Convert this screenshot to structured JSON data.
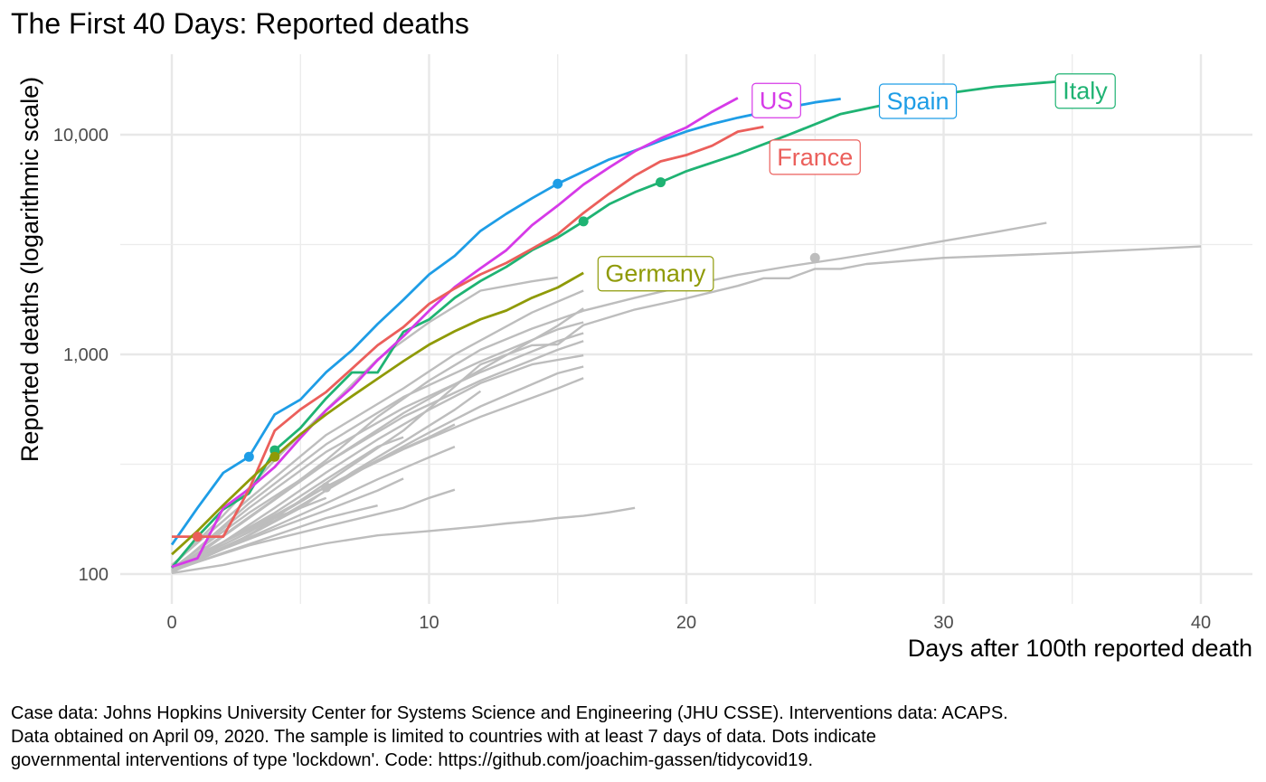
{
  "title": "The First 40 Days: Reported deaths",
  "caption": "Case data: Johns Hopkins University Center for Systems Science and Engineering (JHU CSSE). Interventions data: ACAPS.\nData obtained on April 09, 2020. The sample is limited to countries with at least 7 days of data. Dots indicate\ngovernmental interventions of type 'lockdown'. Code: https://github.com/joachim-gassen/tidycovid19.",
  "chart_data": {
    "type": "line",
    "title": "The First 40 Days: Reported deaths",
    "xlabel": "Days after 100th reported death",
    "ylabel": "Reported deaths (logarithmic scale)",
    "y_scale": "log10",
    "xlim": [
      -2,
      42
    ],
    "ylim": [
      80,
      19000
    ],
    "x_ticks": [
      0,
      10,
      20,
      30,
      40
    ],
    "x_tick_labels": [
      "0",
      "10",
      "20",
      "30",
      "40"
    ],
    "y_ticks": [
      100,
      1000,
      10000
    ],
    "y_tick_labels": [
      "100",
      "1,000",
      "10,000"
    ],
    "grid": true,
    "series": [
      {
        "name": "Italy",
        "color": "#1fb373",
        "label_at": [
          35.5,
          15800
        ],
        "x": [
          0,
          1,
          2,
          3,
          4,
          5,
          6,
          7,
          8,
          9,
          10,
          11,
          12,
          13,
          14,
          15,
          16,
          17,
          18,
          19,
          20,
          22,
          24,
          26,
          28,
          30,
          32,
          35
        ],
        "y": [
          107,
          148,
          197,
          233,
          366,
          463,
          631,
          827,
          827,
          1266,
          1441,
          1809,
          2158,
          2503,
          2978,
          3405,
          4032,
          4825,
          5476,
          6077,
          6820,
          8165,
          10023,
          12428,
          13915,
          15362,
          16523,
          17669
        ],
        "lockdown": [
          [
            4,
            366
          ],
          [
            16,
            4032
          ],
          [
            19,
            6077
          ]
        ]
      },
      {
        "name": "Spain",
        "color": "#1e9de6",
        "label_at": [
          29,
          14200
        ],
        "x": [
          0,
          1,
          2,
          3,
          4,
          5,
          6,
          7,
          8,
          9,
          10,
          11,
          12,
          13,
          14,
          15,
          16,
          17,
          18,
          19,
          20,
          21,
          22,
          23,
          24,
          25,
          26
        ],
        "y": [
          136,
          200,
          289,
          342,
          533,
          623,
          830,
          1043,
          1375,
          1772,
          2311,
          2808,
          3647,
          4365,
          5138,
          5982,
          6803,
          7716,
          8464,
          9387,
          10348,
          11198,
          11947,
          12641,
          13341,
          14045,
          14555
        ],
        "lockdown": [
          [
            3,
            342
          ],
          [
            15,
            5982
          ]
        ]
      },
      {
        "name": "US",
        "color": "#d63ae8",
        "label_at": [
          23.5,
          14300
        ],
        "x": [
          0,
          1,
          2,
          3,
          4,
          5,
          6,
          7,
          8,
          9,
          10,
          11,
          12,
          13,
          14,
          15,
          16,
          17,
          18,
          19,
          20,
          21,
          22
        ],
        "y": [
          108,
          118,
          200,
          244,
          307,
          417,
          557,
          706,
          942,
          1209,
          1581,
          2026,
          2467,
          2978,
          3873,
          4757,
          5926,
          7087,
          8407,
          9619,
          10783,
          12722,
          14695
        ],
        "lockdown": []
      },
      {
        "name": "France",
        "color": "#eb5f5b",
        "label_at": [
          25,
          7900
        ],
        "x": [
          0,
          1,
          2,
          3,
          4,
          5,
          6,
          7,
          8,
          9,
          10,
          11,
          12,
          13,
          14,
          15,
          16,
          17,
          18,
          19,
          20,
          21,
          22,
          23
        ],
        "y": [
          148,
          148,
          148,
          243,
          450,
          562,
          674,
          860,
          1100,
          1331,
          1696,
          1995,
          2314,
          2606,
          3024,
          3523,
          4403,
          5387,
          6507,
          7560,
          8078,
          8911,
          10328,
          10869
        ],
        "lockdown": [
          [
            1,
            148
          ]
        ]
      },
      {
        "name": "Germany",
        "color": "#8f9a07",
        "label_at": [
          18.8,
          2330
        ],
        "x": [
          0,
          1,
          2,
          3,
          4,
          5,
          6,
          7,
          8,
          9,
          10,
          11,
          12,
          13,
          14,
          15,
          16
        ],
        "y": [
          123,
          157,
          206,
          267,
          342,
          433,
          533,
          645,
          775,
          931,
          1107,
          1275,
          1444,
          1584,
          1810,
          2016,
          2349
        ],
        "lockdown": [
          [
            4,
            342
          ]
        ]
      }
    ],
    "other_countries": {
      "color": "#bdbdbd",
      "lines": [
        {
          "x": [
            0,
            2,
            4,
            6,
            8,
            10,
            12,
            14,
            16,
            18,
            20,
            22,
            24,
            26,
            28,
            30,
            32,
            34
          ],
          "y": [
            104,
            150,
            220,
            330,
            520,
            760,
            1050,
            1310,
            1580,
            1810,
            2050,
            2300,
            2520,
            2730,
            2980,
            3280,
            3600,
            3970
          ]
        },
        {
          "x": [
            0,
            3,
            6,
            9,
            12,
            14,
            15,
            16,
            18,
            20,
            22,
            23,
            24,
            25,
            26,
            27,
            30,
            35,
            40
          ],
          "y": [
            103,
            150,
            260,
            450,
            900,
            1100,
            1110,
            1360,
            1600,
            1800,
            2050,
            2220,
            2220,
            2450,
            2450,
            2580,
            2750,
            2900,
            3100
          ],
          "lockdown": [
            [
              25,
              2750
            ]
          ]
        },
        {
          "x": [
            0,
            2,
            4,
            6,
            8,
            10,
            12,
            14,
            15
          ],
          "y": [
            108,
            185,
            330,
            560,
            950,
            1400,
            1950,
            2150,
            2240
          ]
        },
        {
          "x": [
            0,
            3,
            6,
            9,
            11,
            14,
            16
          ],
          "y": [
            110,
            220,
            430,
            700,
            1000,
            1550,
            1950
          ]
        },
        {
          "x": [
            0,
            3,
            6,
            9,
            12,
            15,
            16
          ],
          "y": [
            105,
            200,
            360,
            570,
            830,
            1150,
            1250
          ]
        },
        {
          "x": [
            0,
            3,
            6,
            9,
            12,
            15,
            16
          ],
          "y": [
            106,
            190,
            320,
            520,
            760,
            1050,
            1150
          ]
        },
        {
          "x": [
            0,
            3,
            6,
            9,
            12,
            15,
            16
          ],
          "y": [
            103,
            210,
            390,
            640,
            930,
            1300,
            1400
          ]
        },
        {
          "x": [
            0,
            2,
            4,
            6,
            8,
            10,
            12,
            14,
            16
          ],
          "y": [
            104,
            140,
            200,
            290,
            410,
            560,
            740,
            900,
            990
          ]
        },
        {
          "x": [
            0,
            3,
            6,
            9,
            12,
            15,
            16
          ],
          "y": [
            101,
            180,
            320,
            540,
            850,
            1350,
            1620
          ]
        },
        {
          "x": [
            0,
            3,
            6,
            9,
            12,
            15,
            16
          ],
          "y": [
            105,
            155,
            250,
            370,
            520,
            700,
            780
          ]
        },
        {
          "x": [
            0,
            2,
            4,
            6,
            8,
            10,
            12,
            15,
            16
          ],
          "y": [
            103,
            130,
            175,
            240,
            330,
            440,
            580,
            820,
            880
          ]
        },
        {
          "x": [
            0,
            3,
            5,
            7,
            9,
            11,
            12
          ],
          "y": [
            104,
            150,
            200,
            290,
            400,
            560,
            680
          ]
        },
        {
          "x": [
            0,
            2,
            4,
            6,
            8,
            10,
            11
          ],
          "y": [
            107,
            140,
            185,
            250,
            330,
            420,
            480
          ]
        },
        {
          "x": [
            0,
            2,
            4,
            6,
            8,
            9
          ],
          "y": [
            103,
            140,
            190,
            270,
            380,
            420
          ]
        },
        {
          "x": [
            0,
            2,
            4,
            6,
            8,
            10,
            11
          ],
          "y": [
            105,
            130,
            165,
            210,
            270,
            340,
            380
          ],
          "lockdown": [
            [
              6,
              248
            ]
          ]
        },
        {
          "x": [
            0,
            2,
            4,
            6,
            8,
            9
          ],
          "y": [
            102,
            130,
            160,
            195,
            240,
            272
          ]
        },
        {
          "x": [
            0,
            3,
            6,
            9,
            10,
            11
          ],
          "y": [
            104,
            135,
            165,
            200,
            222,
            242
          ]
        },
        {
          "x": [
            0,
            2,
            4,
            6
          ],
          "y": [
            101,
            140,
            180,
            222
          ]
        },
        {
          "x": [
            0,
            2,
            4,
            6,
            8
          ],
          "y": [
            103,
            125,
            150,
            180,
            205
          ]
        },
        {
          "x": [
            0,
            2,
            4,
            6,
            8,
            10,
            12,
            13,
            14,
            15,
            16,
            17,
            18
          ],
          "y": [
            101,
            110,
            124,
            138,
            150,
            157,
            165,
            170,
            174,
            180,
            184,
            191,
            200
          ]
        }
      ]
    }
  }
}
